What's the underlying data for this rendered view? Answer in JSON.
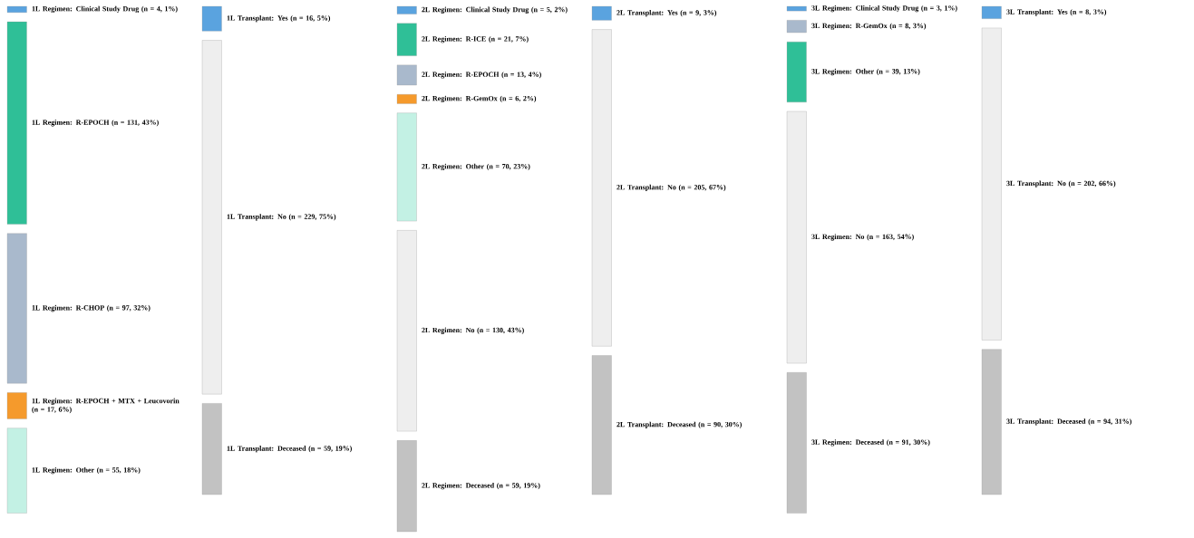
{
  "chart_data": [
    {
      "type": "other",
      "categories": [
        "1L Regimen: Clinical Study Drug",
        "1L Regimen: R-EPOCH",
        "1L Regimen: R-CHOP",
        "1L Regimen: R-EPOCH + MTX + Leucovorin",
        "1L Regimen: Other"
      ],
      "values": [
        4,
        131,
        97,
        17,
        55
      ],
      "value_labels": [
        "(n = 4, 1%)",
        "(n = 131, 43%)",
        "(n = 97, 32%)",
        "(n = 17, 6%)",
        "(n = 55, 18%)"
      ],
      "colors": [
        "#5aa3df",
        "#2fbf97",
        "#a9b9cc",
        "#f59a2c",
        "#c3f1e4"
      ]
    },
    {
      "type": "other",
      "categories": [
        "1L Transplant: Yes",
        "1L Transplant: No",
        "1L Transplant: Deceased"
      ],
      "values": [
        16,
        229,
        59
      ],
      "value_labels": [
        "(n = 16, 5%)",
        "(n = 229, 75%)",
        "(n = 59, 19%)"
      ],
      "colors": [
        "#5aa3df",
        "#eeeeee",
        "#c2c2c2"
      ]
    },
    {
      "type": "other",
      "categories": [
        "2L Regimen: Clinical Study Drug",
        "2L Regimen: R-ICE",
        "2L Regimen: R-EPOCH",
        "2L Regimen: R-GemOx",
        "2L Regimen: Other",
        "2L Regimen: No",
        "2L Regimen: Deceased"
      ],
      "values": [
        5,
        21,
        13,
        6,
        70,
        130,
        59
      ],
      "value_labels": [
        "(n = 5, 2%)",
        "(n = 21, 7%)",
        "(n = 13, 4%)",
        "(n = 6, 2%)",
        "(n = 70, 23%)",
        "(n = 130, 43%)",
        "(n = 59, 19%)"
      ],
      "colors": [
        "#5aa3df",
        "#2fbf97",
        "#a9b9cc",
        "#f59a2c",
        "#c3f1e4",
        "#eeeeee",
        "#c2c2c2"
      ]
    },
    {
      "type": "other",
      "categories": [
        "2L Transplant: Yes",
        "2L Transplant: No",
        "2L Transplant: Deceased"
      ],
      "values": [
        9,
        205,
        90
      ],
      "value_labels": [
        "(n = 9, 3%)",
        "(n = 205, 67%)",
        "(n = 90, 30%)"
      ],
      "colors": [
        "#5aa3df",
        "#eeeeee",
        "#c2c2c2"
      ]
    },
    {
      "type": "other",
      "categories": [
        "3L Regimen: Clinical Study Drug",
        "3L Regimen: R-GemOx",
        "3L Regimen: Other",
        "3L Regimen: No",
        "3L Regimen: Deceased"
      ],
      "values": [
        3,
        8,
        39,
        163,
        91
      ],
      "value_labels": [
        "(n = 3, 1%)",
        "(n = 8, 3%)",
        "(n = 39, 13%)",
        "(n = 163, 54%)",
        "(n = 91, 30%)"
      ],
      "colors": [
        "#5aa3df",
        "#a9b9cc",
        "#2fbf97",
        "#eeeeee",
        "#c2c2c2"
      ]
    },
    {
      "type": "other",
      "categories": [
        "3L Transplant: Yes",
        "3L Transplant: No",
        "3L Transplant: Deceased"
      ],
      "values": [
        8,
        202,
        94
      ],
      "value_labels": [
        "(n = 8, 3%)",
        "(n = 202, 66%)",
        "(n = 94, 31%)"
      ],
      "colors": [
        "#5aa3df",
        "#eeeeee",
        "#c2c2c2"
      ]
    }
  ]
}
